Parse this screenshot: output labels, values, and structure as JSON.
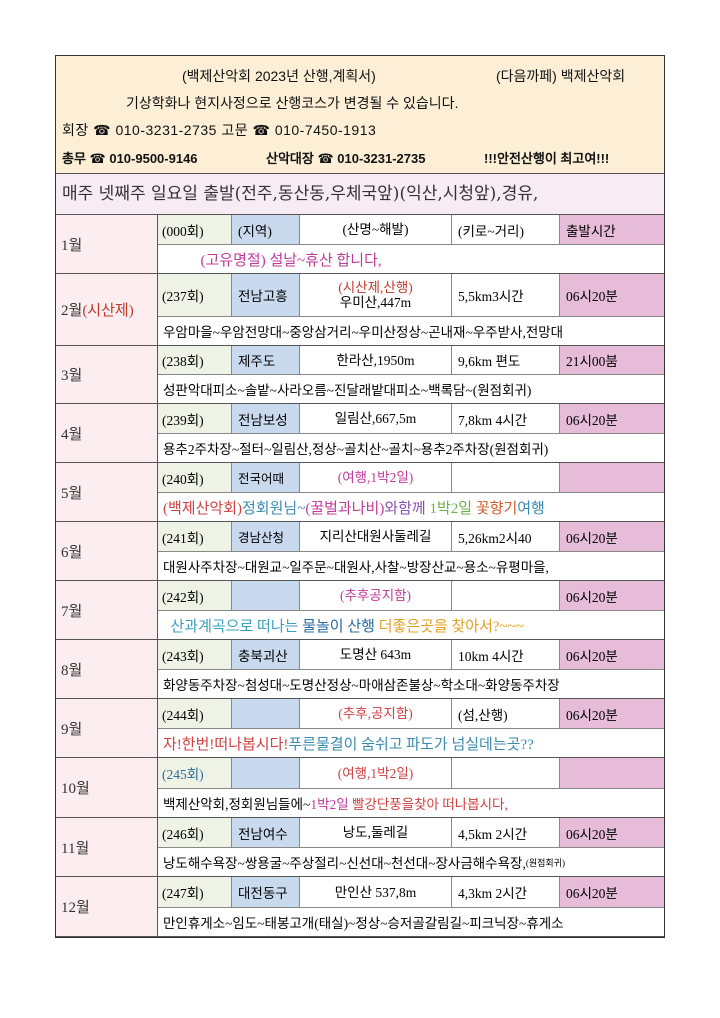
{
  "header": {
    "title": "(백제산악회 2023년 산행,계획서)",
    "cafe": "(다음까페) 백제산악회",
    "notice_change": "기상학화나 현지사정으로 산행코스가 변경될 수 있습니다.",
    "line3": "회장 ☎ 010-3231-2735    고문 ☎ 010-7450-1913",
    "line4a": "총무 ☎ 010-9500-9146",
    "line4b": "산악대장 ☎ 010-3231-2735",
    "line4c": "!!!안전산행이 최고여!!!"
  },
  "notice": "매주 넷째주 일요일 출발(전주,동산동,우체국앞)(익산,시청앞),경유,",
  "colors": {
    "header_bg": "#fcefd6",
    "notice_bg": "#f7ebf4",
    "month_bg": "#fbedf0",
    "round_bg": "#eef3e6",
    "region_bg": "#c9d9ee",
    "time_bg": "#e6bcd9"
  },
  "months": [
    {
      "month": [
        {
          "t": "1월"
        }
      ],
      "round": "(000회)",
      "region": "(지역)",
      "mountain": [
        {
          "t": "(산명~해발)"
        }
      ],
      "distance": "(키로~거리)",
      "time": "출발시간",
      "course": [
        {
          "t": "          (고유명절) 설날~휴산 합니다,",
          "c": "#c03a9a"
        }
      ]
    },
    {
      "month": [
        {
          "t": "2월"
        },
        {
          "t": "(시산제)",
          "c": "#c0392b"
        }
      ],
      "round": "(237회)",
      "region": "전남고흥",
      "mountain": [
        {
          "t": "(시산제,산행)",
          "c": "#c0392b"
        },
        {
          "t": "우미산,447m"
        }
      ],
      "distance": "5,5km3시간",
      "time": "06시20분",
      "course": [
        {
          "t": "우암마을~우암전망대~중앙삼거리~우미산정상~곤내재~우주받사,전망대"
        }
      ]
    },
    {
      "month": [
        {
          "t": "3월"
        }
      ],
      "round": "(238회)",
      "region": "제주도",
      "mountain": [
        {
          "t": "한라산,1950m"
        }
      ],
      "distance": "9,6km 편도",
      "time": "21시00붐",
      "course": [
        {
          "t": "성판악대피소~솔밭~사라오름~진달래밭대피소~백록담~(원점회귀)"
        }
      ]
    },
    {
      "month": [
        {
          "t": "4월"
        }
      ],
      "round": "(239회)",
      "region": "전남보성",
      "mountain": [
        {
          "t": "일림산,667,5m"
        }
      ],
      "distance": "7,8km 4시간",
      "time": "06시20분",
      "course": [
        {
          "t": "용추2주차장~절터~일림산,정상~골치산~골치~용추2주차장(원점회귀)"
        }
      ]
    },
    {
      "month": [
        {
          "t": "5월"
        }
      ],
      "round": "(240회)",
      "region": "전국어때",
      "mountain": [
        {
          "t": "(여행,1박2일)",
          "c": "#c03a9a"
        }
      ],
      "distance": "",
      "time": "",
      "course": [
        {
          "t": "(백제산악회)",
          "c": "#d04040"
        },
        {
          "t": "정회원님~",
          "c": "#3a8bb0"
        },
        {
          "t": "(꿀벌과나비)",
          "c": "#c03a9a"
        },
        {
          "t": "와함께 ",
          "c": "#8a4fb0"
        },
        {
          "t": "1박2일 ",
          "c": "#6ab04a"
        },
        {
          "t": "꽃향기",
          "c": "#d06030"
        },
        {
          "t": "여행",
          "c": "#3a8bb0"
        }
      ]
    },
    {
      "month": [
        {
          "t": "6월"
        }
      ],
      "round": "(241회)",
      "region": "경남산청",
      "mountain": [
        {
          "t": "지리산대원사둘레길"
        }
      ],
      "distance": "5,26km2시40",
      "time": "06시20분",
      "course": [
        {
          "t": "대원사주차장~대원교~일주문~대원사,사찰~방장산교~용소~유평마을,"
        }
      ]
    },
    {
      "month": [
        {
          "t": "7월"
        }
      ],
      "round": "(242회)",
      "region": "",
      "mountain": [
        {
          "t": "(추후공지함)",
          "c": "#c03a9a"
        }
      ],
      "distance": "",
      "time": "06시20분",
      "course": [
        {
          "t": "  산과계곡으로 떠나는 ",
          "c": "#3aa0c0"
        },
        {
          "t": "물놀이 산행 ",
          "c": "#2a6aa0"
        },
        {
          "t": "더좋은곳을 찾아서?~~~",
          "c": "#e0a020"
        }
      ]
    },
    {
      "month": [
        {
          "t": "8월"
        }
      ],
      "round": "(243회)",
      "region": "충북괴산",
      "mountain": [
        {
          "t": "도명산 643m"
        }
      ],
      "distance": "10km 4시간",
      "time": "06시20분",
      "course": [
        {
          "t": "화양동주차장~첨성대~도명산정상~마애삼존불상~학소대~화양동주차장"
        }
      ]
    },
    {
      "month": [
        {
          "t": "9월"
        }
      ],
      "round": "(244회)",
      "region": "",
      "mountain": [
        {
          "t": "(추후,공지함)",
          "c": "#d04040"
        }
      ],
      "distance": "(섬,산행)",
      "time": "06시20분",
      "course": [
        {
          "t": "자!한번!떠나봅시다!",
          "c": "#d04040"
        },
        {
          "t": "푸른물결이 숨쉬고 파도가 넘실데는곳??",
          "c": "#3a8bb0"
        }
      ]
    },
    {
      "month": [
        {
          "t": "10월"
        }
      ],
      "round": "(245회)",
      "region": "",
      "mountain": [
        {
          "t": "(여행,1박2일)",
          "c": "#d04040"
        }
      ],
      "distance": "",
      "time": "",
      "course": [
        {
          "t": "백제산악회,정회원님들에~"
        },
        {
          "t": "1박2일 ",
          "c": "#c03a9a"
        },
        {
          "t": "빨강단풍을찾아 떠나봅시다,",
          "c": "#d04040"
        }
      ]
    },
    {
      "month": [
        {
          "t": "11월"
        }
      ],
      "round": "(246회)",
      "region": "전남여수",
      "mountain": [
        {
          "t": "낭도,둘레길"
        }
      ],
      "distance": "4,5km 2시간",
      "time": "06시20분",
      "course": [
        {
          "t": "낭도해수욕장~쌍용굴~주상절리~신선대~천선대~장사금해수욕장,"
        },
        {
          "t": "(원점회귀)",
          "s": "small"
        }
      ]
    },
    {
      "month": [
        {
          "t": "12월"
        }
      ],
      "round": "(247회)",
      "region": "대전동구",
      "mountain": [
        {
          "t": "만인산 537,8m"
        }
      ],
      "distance": "4,3km 2시간",
      "time": "06시20분",
      "course": [
        {
          "t": "만인휴게소~임도~태봉고개(태실)~정상~승저골갈림길~피크닉장~휴게소"
        }
      ]
    }
  ]
}
